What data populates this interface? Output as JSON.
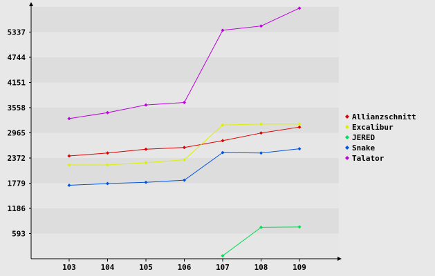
{
  "chart_data": {
    "type": "line",
    "title": "",
    "xlabel": "",
    "ylabel": "",
    "x": [
      "103",
      "104",
      "105",
      "106",
      "107",
      "108",
      "109"
    ],
    "y_ticks": [
      "593",
      "1186",
      "1779",
      "2372",
      "2965",
      "3558",
      "4151",
      "4744",
      "5337"
    ],
    "ylim": [
      0,
      5930
    ],
    "grid": "horizontal bands",
    "legend_position": "right",
    "series": [
      {
        "name": "Allianzschnitt",
        "color": "#dd0000",
        "values": [
          2420,
          2490,
          2580,
          2620,
          2780,
          2960,
          3100
        ]
      },
      {
        "name": "Excalibur",
        "color": "#ddf000",
        "values": [
          2210,
          2210,
          2260,
          2330,
          3150,
          3170,
          3170
        ]
      },
      {
        "name": "JERED",
        "color": "#00dd55",
        "values": [
          null,
          null,
          null,
          null,
          70,
          740,
          750
        ]
      },
      {
        "name": "Snake",
        "color": "#0055dd",
        "values": [
          1730,
          1770,
          1800,
          1850,
          2500,
          2490,
          2590
        ]
      },
      {
        "name": "Talator",
        "color": "#bb00dd",
        "values": [
          3300,
          3440,
          3620,
          3680,
          5380,
          5480,
          5900
        ]
      }
    ]
  }
}
